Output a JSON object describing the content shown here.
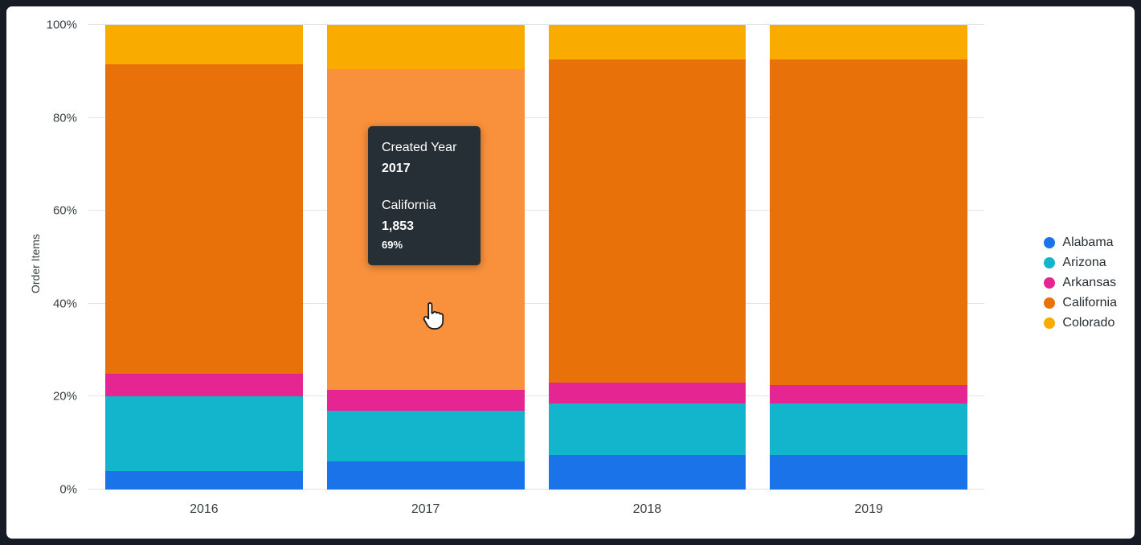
{
  "colors": {
    "outer_frame": "#171B26",
    "panel_bg": "#FFFFFF",
    "axis_text": "#3A4245",
    "legend_text": "#262D33",
    "gridline": "#E3E3E3",
    "tooltip_bg": "#262E36"
  },
  "chart_data": {
    "type": "bar",
    "variant": "stacked-percent",
    "title": "",
    "xlabel": "",
    "ylabel": "Order Items",
    "units": "percent",
    "categories": [
      "2016",
      "2017",
      "2018",
      "2019"
    ],
    "series": [
      {
        "name": "Alabama",
        "color": "#1A73E8",
        "values": [
          4,
          6,
          7.5,
          7.5
        ]
      },
      {
        "name": "Arizona",
        "color": "#12B5CB",
        "values": [
          16,
          11,
          11,
          11
        ]
      },
      {
        "name": "Arkansas",
        "color": "#E52592",
        "values": [
          5,
          4.5,
          4.5,
          4
        ]
      },
      {
        "name": "California",
        "color": "#E8710A",
        "values": [
          66.5,
          69,
          69.5,
          70
        ]
      },
      {
        "name": "Colorado",
        "color": "#F9AB00",
        "values": [
          8.5,
          9.5,
          7.5,
          7.5
        ]
      }
    ],
    "y_ticks": [
      "0%",
      "20%",
      "40%",
      "60%",
      "80%",
      "100%"
    ],
    "ylim": [
      0,
      100
    ],
    "grid": true,
    "legend_position": "right",
    "highlight": {
      "category": "2017",
      "series": "California",
      "color": "#F9913C"
    }
  },
  "tooltip": {
    "dimension_label": "Created Year",
    "dimension_value": "2017",
    "series_label": "California",
    "value": "1,853",
    "percent": "69%"
  }
}
